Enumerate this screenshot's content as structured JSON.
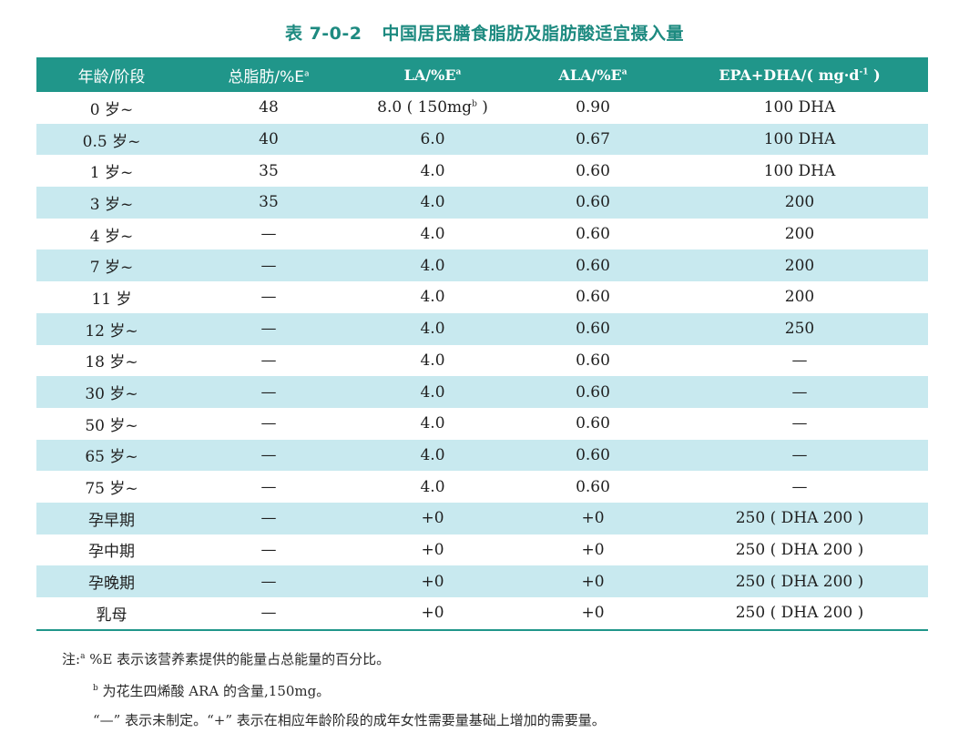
{
  "caption": {
    "number": "表 7-0-2",
    "title": "中国居民膳食脂肪及脂肪酸适宜摄入量"
  },
  "table": {
    "headers": [
      {
        "text": "年龄/阶段",
        "sup": ""
      },
      {
        "text": "总脂肪/%E",
        "sup": "a"
      },
      {
        "text": "LA/%E",
        "sup": "a"
      },
      {
        "text": "ALA/%E",
        "sup": "a"
      },
      {
        "text": "EPA+DHA/( mg·d",
        "sup": "-1",
        "suffix": " )"
      }
    ],
    "rows": [
      {
        "age": "0 岁~",
        "fat": "48",
        "la": "8.0 ( 150mg",
        "la_sup": "b",
        "la_suffix": " )",
        "ala": "0.90",
        "epa": "100 DHA"
      },
      {
        "age": "0.5 岁~",
        "fat": "40",
        "la": "6.0",
        "la_sup": "",
        "la_suffix": "",
        "ala": "0.67",
        "epa": "100 DHA"
      },
      {
        "age": "1 岁~",
        "fat": "35",
        "la": "4.0",
        "la_sup": "",
        "la_suffix": "",
        "ala": "0.60",
        "epa": "100 DHA"
      },
      {
        "age": "3 岁~",
        "fat": "35",
        "la": "4.0",
        "la_sup": "",
        "la_suffix": "",
        "ala": "0.60",
        "epa": "200"
      },
      {
        "age": "4 岁~",
        "fat": "—",
        "la": "4.0",
        "la_sup": "",
        "la_suffix": "",
        "ala": "0.60",
        "epa": "200"
      },
      {
        "age": "7 岁~",
        "fat": "—",
        "la": "4.0",
        "la_sup": "",
        "la_suffix": "",
        "ala": "0.60",
        "epa": "200"
      },
      {
        "age": "11 岁",
        "fat": "—",
        "la": "4.0",
        "la_sup": "",
        "la_suffix": "",
        "ala": "0.60",
        "epa": "200"
      },
      {
        "age": "12 岁~",
        "fat": "—",
        "la": "4.0",
        "la_sup": "",
        "la_suffix": "",
        "ala": "0.60",
        "epa": "250"
      },
      {
        "age": "18 岁~",
        "fat": "—",
        "la": "4.0",
        "la_sup": "",
        "la_suffix": "",
        "ala": "0.60",
        "epa": "—"
      },
      {
        "age": "30 岁~",
        "fat": "—",
        "la": "4.0",
        "la_sup": "",
        "la_suffix": "",
        "ala": "0.60",
        "epa": "—"
      },
      {
        "age": "50 岁~",
        "fat": "—",
        "la": "4.0",
        "la_sup": "",
        "la_suffix": "",
        "ala": "0.60",
        "epa": "—"
      },
      {
        "age": "65 岁~",
        "fat": "—",
        "la": "4.0",
        "la_sup": "",
        "la_suffix": "",
        "ala": "0.60",
        "epa": "—"
      },
      {
        "age": "75 岁~",
        "fat": "—",
        "la": "4.0",
        "la_sup": "",
        "la_suffix": "",
        "ala": "0.60",
        "epa": "—"
      },
      {
        "age": "孕早期",
        "fat": "—",
        "la": "+0",
        "la_sup": "",
        "la_suffix": "",
        "ala": "+0",
        "epa": "250 ( DHA 200 )"
      },
      {
        "age": "孕中期",
        "fat": "—",
        "la": "+0",
        "la_sup": "",
        "la_suffix": "",
        "ala": "+0",
        "epa": "250 ( DHA 200 )"
      },
      {
        "age": "孕晚期",
        "fat": "—",
        "la": "+0",
        "la_sup": "",
        "la_suffix": "",
        "ala": "+0",
        "epa": "250 ( DHA 200 )"
      },
      {
        "age": "乳母",
        "fat": "—",
        "la": "+0",
        "la_sup": "",
        "la_suffix": "",
        "ala": "+0",
        "epa": "250 ( DHA 200 )"
      }
    ]
  },
  "notes": [
    {
      "prefix": "注:",
      "sup": "a",
      "text": " %E 表示该营养素提供的能量占总能量的百分比。"
    },
    {
      "prefix": "",
      "sup": "b",
      "text": " 为花生四烯酸 ARA 的含量,150mg。"
    },
    {
      "prefix": "",
      "sup": "",
      "text": "“—” 表示未制定。“+” 表示在相应年龄阶段的成年女性需要量基础上增加的需要量。"
    }
  ],
  "colors": {
    "accent": "#20968a",
    "caption": "#1d8a80",
    "stripe": "#c8e9ef"
  }
}
